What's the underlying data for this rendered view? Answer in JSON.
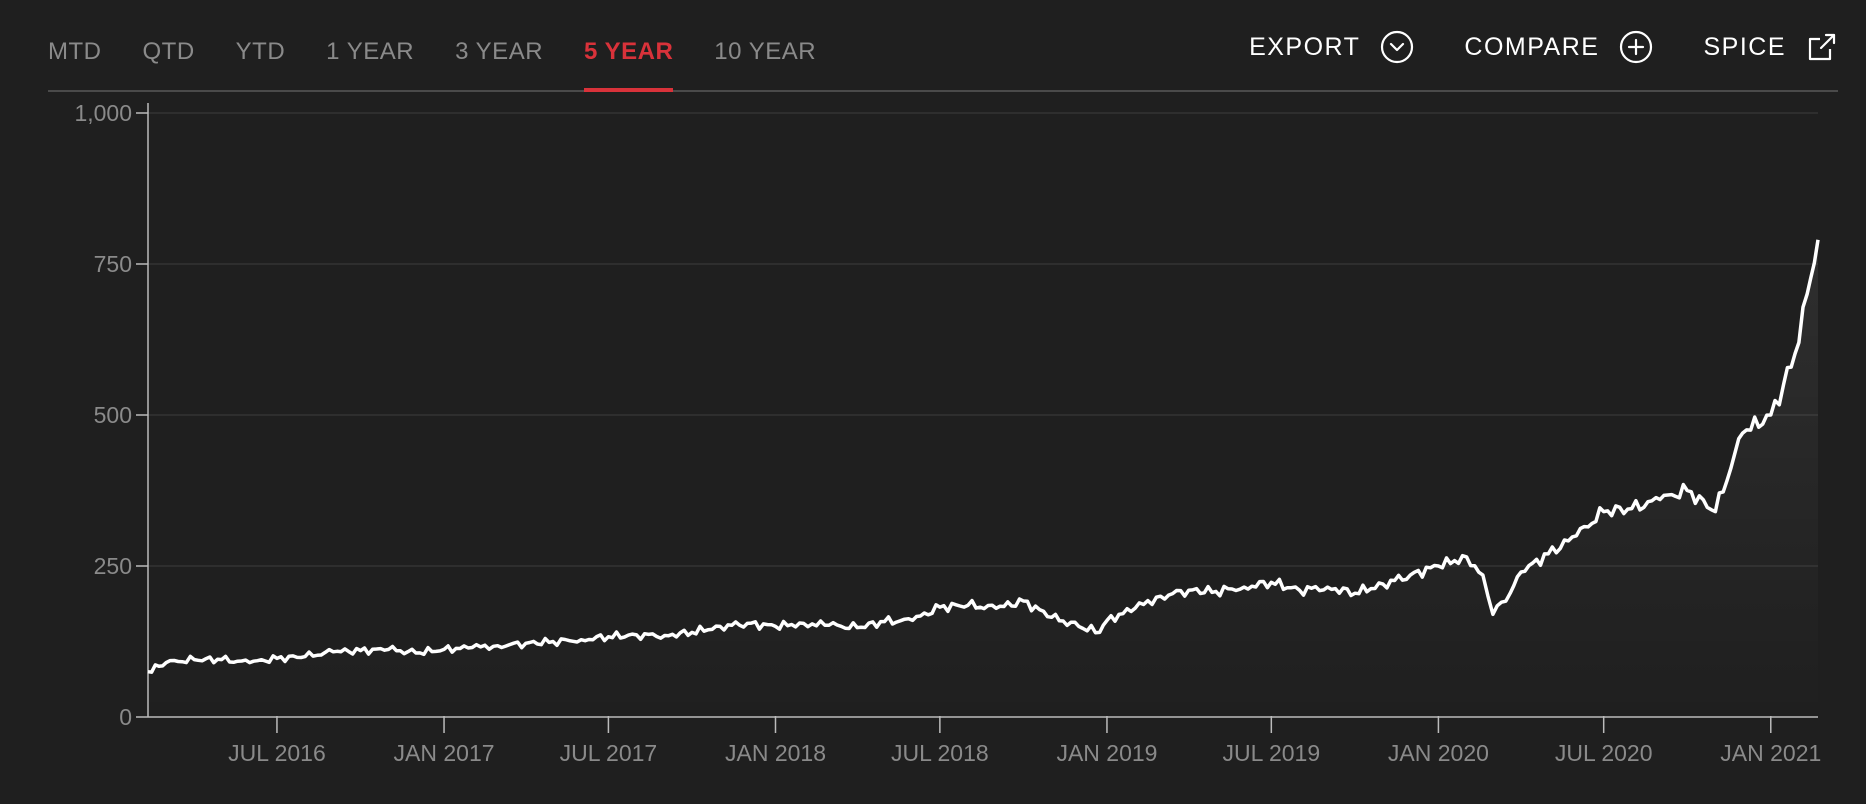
{
  "tabs": [
    {
      "label": "MTD",
      "active": false
    },
    {
      "label": "QTD",
      "active": false
    },
    {
      "label": "YTD",
      "active": false
    },
    {
      "label": "1 YEAR",
      "active": false
    },
    {
      "label": "3 YEAR",
      "active": false
    },
    {
      "label": "5 YEAR",
      "active": true
    },
    {
      "label": "10 YEAR",
      "active": false
    }
  ],
  "actions": {
    "export_label": "EXPORT",
    "export_icon": "chevron-circle-down-icon",
    "compare_label": "COMPARE",
    "compare_icon": "plus-circle-icon",
    "spice_label": "SPICE",
    "spice_icon": "external-link-icon"
  },
  "colors": {
    "background": "#1f1f1f",
    "accent": "#d9323a",
    "line": "#ffffff",
    "grid": "#333333",
    "muted_text": "#8a8a8a"
  },
  "chart_data": {
    "type": "line",
    "title": "",
    "xlabel": "",
    "ylabel": "",
    "ylim": [
      0,
      1000
    ],
    "yticks": [
      0,
      250,
      500,
      750,
      1000
    ],
    "ytick_labels": [
      "0",
      "250",
      "500",
      "750",
      "1,000"
    ],
    "xlim": [
      "2016-02-10",
      "2021-02-22"
    ],
    "xticks": [
      "2016-07-01",
      "2017-01-01",
      "2017-07-01",
      "2018-01-01",
      "2018-07-01",
      "2019-01-01",
      "2019-07-01",
      "2020-01-01",
      "2020-07-01",
      "2021-01-01"
    ],
    "xtick_labels": [
      "JUL 2016",
      "JAN 2017",
      "JUL 2017",
      "JAN 2018",
      "JUL 2018",
      "JAN 2019",
      "JUL 2019",
      "JAN 2020",
      "JUL 2020",
      "JAN 2021"
    ],
    "grid": true,
    "series": [
      {
        "x": [
          "2016-02-10",
          "2016-03-01",
          "2016-04-01",
          "2016-05-01",
          "2016-06-01",
          "2016-07-01",
          "2016-08-01",
          "2016-09-01",
          "2016-10-01",
          "2016-11-01",
          "2016-12-01",
          "2017-01-01",
          "2017-02-01",
          "2017-03-01",
          "2017-04-01",
          "2017-05-01",
          "2017-06-01",
          "2017-07-01",
          "2017-08-01",
          "2017-09-01",
          "2017-10-01",
          "2017-11-01",
          "2017-12-01",
          "2018-01-01",
          "2018-02-01",
          "2018-03-01",
          "2018-04-01",
          "2018-05-01",
          "2018-06-01",
          "2018-07-01",
          "2018-08-01",
          "2018-09-01",
          "2018-10-01",
          "2018-11-01",
          "2018-12-01",
          "2018-12-24",
          "2019-01-01",
          "2019-02-01",
          "2019-03-01",
          "2019-04-01",
          "2019-05-01",
          "2019-06-01",
          "2019-07-01",
          "2019-08-01",
          "2019-09-01",
          "2019-10-01",
          "2019-11-01",
          "2019-12-01",
          "2020-01-01",
          "2020-02-01",
          "2020-02-19",
          "2020-03-01",
          "2020-03-20",
          "2020-04-01",
          "2020-05-01",
          "2020-06-01",
          "2020-07-01",
          "2020-08-01",
          "2020-09-01",
          "2020-10-01",
          "2020-11-01",
          "2020-12-01",
          "2021-01-01",
          "2021-01-15",
          "2021-02-01",
          "2021-02-10",
          "2021-02-22"
        ],
        "y": [
          75,
          90,
          95,
          95,
          90,
          97,
          100,
          108,
          110,
          112,
          106,
          112,
          115,
          118,
          122,
          125,
          128,
          133,
          136,
          135,
          140,
          150,
          155,
          150,
          155,
          152,
          148,
          158,
          160,
          182,
          185,
          180,
          192,
          165,
          150,
          140,
          160,
          180,
          200,
          210,
          208,
          215,
          223,
          210,
          215,
          205,
          220,
          235,
          250,
          265,
          235,
          170,
          205,
          240,
          270,
          300,
          340,
          345,
          360,
          375,
          340,
          470,
          500,
          550,
          620,
          700,
          790
        ]
      }
    ]
  }
}
